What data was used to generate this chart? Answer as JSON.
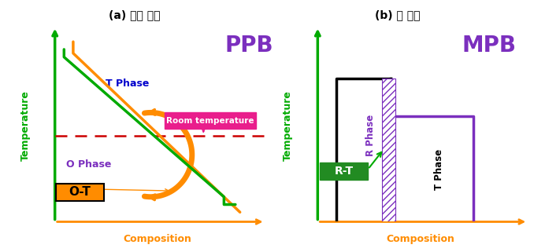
{
  "title_a": "(a) 기존 연구",
  "title_b": "(b) 본 연구",
  "label_ppb": "PPB",
  "label_mpb": "MPB",
  "label_t_phase_a": "T Phase",
  "label_o_phase": "O Phase",
  "label_ot": "O-T",
  "label_rt": "R-T",
  "label_r_phase": "R Phase",
  "label_t_phase_b": "T Phase",
  "label_room_temp": "Room temperature",
  "label_comp": "Composition",
  "label_temp": "Temperature",
  "color_green": "#00aa00",
  "color_orange": "#ff8c00",
  "color_purple": "#7b2fbe",
  "color_blue": "#0000cc",
  "color_dashed": "#cc0000",
  "color_pink_box": "#e91e8c",
  "color_rt_box": "#228B22",
  "bg_color": "#ffffff"
}
